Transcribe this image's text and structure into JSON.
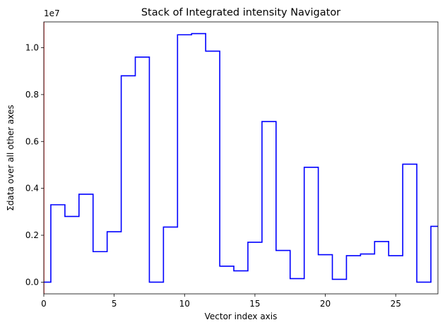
{
  "chart_data": {
    "type": "line",
    "style": "step",
    "title": "Stack of Integrated intensity Navigator",
    "xlabel": "Vector index axis",
    "ylabel": "Σdata over all other axes",
    "y_offset_text": "1e7",
    "xlim": [
      0,
      28
    ],
    "ylim": [
      -0.05,
      1.11
    ],
    "x_ticks": [
      0,
      5,
      10,
      15,
      20,
      25
    ],
    "x_tick_labels": [
      "0",
      "5",
      "10",
      "15",
      "20",
      "25"
    ],
    "y_ticks": [
      0.0,
      0.2,
      0.4,
      0.6,
      0.8,
      1.0
    ],
    "y_tick_labels": [
      "0.0",
      "0.2",
      "0.4",
      "0.6",
      "0.8",
      "1.0"
    ],
    "grid": false,
    "line_color": "#0000ff",
    "indicator_color": "#ff0000",
    "indicator_x": 0,
    "series": [
      {
        "x": [
          0,
          1,
          2,
          3,
          4,
          5,
          6,
          7,
          8,
          9,
          10,
          11,
          12,
          13,
          14,
          15,
          16,
          17,
          18,
          19,
          20,
          21,
          22,
          23,
          24,
          25,
          26,
          27,
          28
        ],
        "values": [
          0.0,
          0.33,
          0.28,
          0.375,
          0.13,
          0.215,
          0.88,
          0.96,
          0.0,
          0.235,
          1.055,
          1.06,
          0.985,
          0.068,
          0.048,
          0.17,
          0.685,
          0.135,
          0.015,
          0.49,
          0.117,
          0.012,
          0.113,
          0.12,
          0.173,
          0.113,
          0.503,
          0.0,
          0.238
        ]
      }
    ]
  }
}
